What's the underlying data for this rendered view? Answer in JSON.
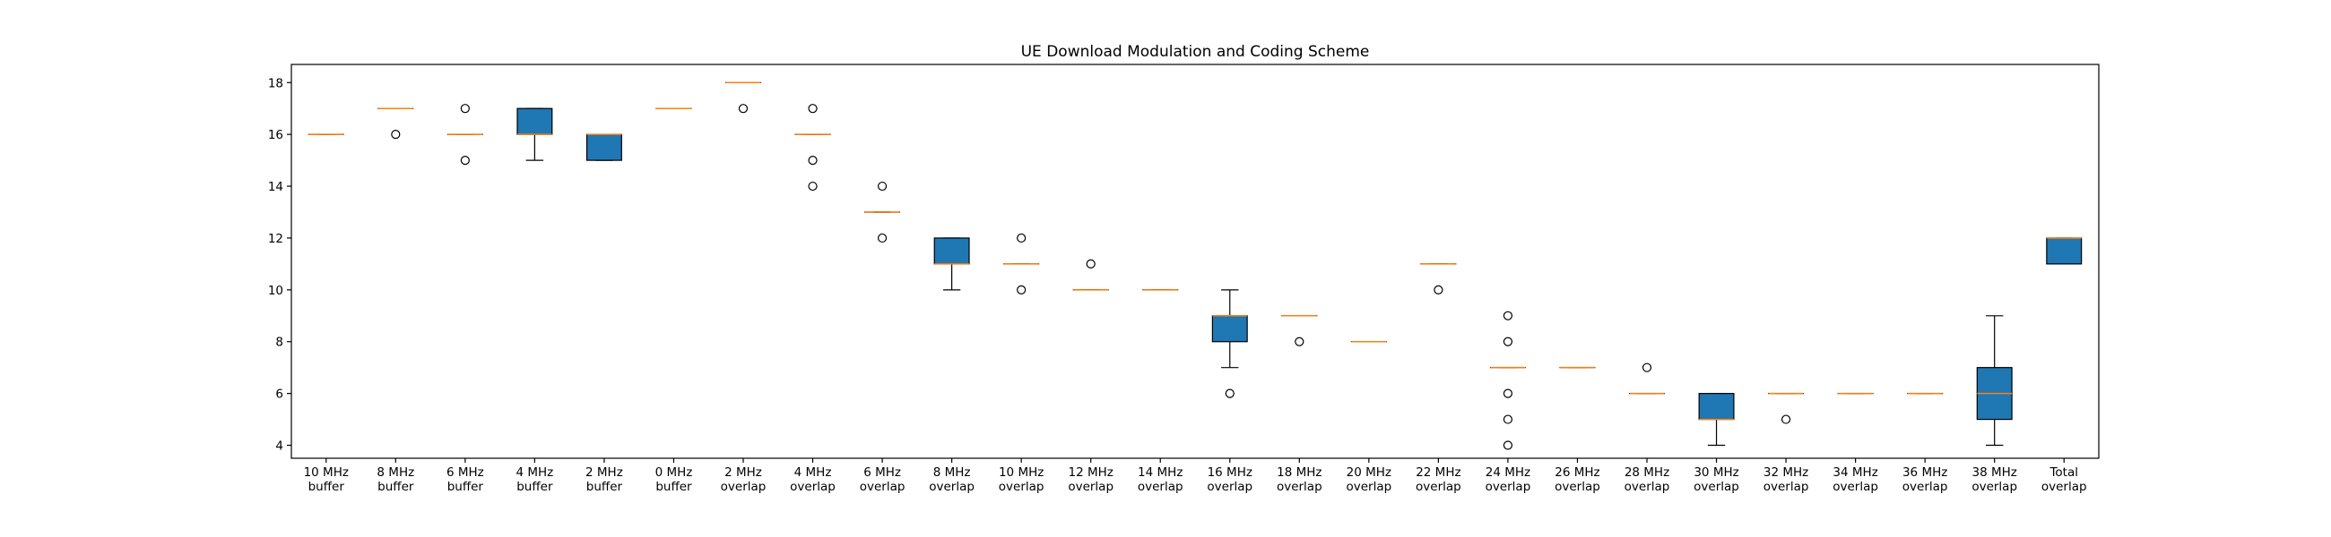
{
  "chart_data": {
    "type": "box",
    "title": "UE Download Modulation and Coding Scheme",
    "xlabel": "",
    "ylabel": "",
    "ylim": [
      3.5,
      18.7
    ],
    "yticks": [
      4,
      6,
      8,
      10,
      12,
      14,
      16,
      18
    ],
    "grid": false,
    "legend": "none",
    "box_color": "#1f77b4",
    "median_color": "#ff7f0e",
    "categories": [
      [
        "10 MHz",
        "buffer"
      ],
      [
        "8 MHz",
        "buffer"
      ],
      [
        "6 MHz",
        "buffer"
      ],
      [
        "4 MHz",
        "buffer"
      ],
      [
        "2 MHz",
        "buffer"
      ],
      [
        "0 MHz",
        "buffer"
      ],
      [
        "2 MHz",
        "overlap"
      ],
      [
        "4 MHz",
        "overlap"
      ],
      [
        "6 MHz",
        "overlap"
      ],
      [
        "8 MHz",
        "overlap"
      ],
      [
        "10 MHz",
        "overlap"
      ],
      [
        "12 MHz",
        "overlap"
      ],
      [
        "14 MHz",
        "overlap"
      ],
      [
        "16 MHz",
        "overlap"
      ],
      [
        "18 MHz",
        "overlap"
      ],
      [
        "20 MHz",
        "overlap"
      ],
      [
        "22 MHz",
        "overlap"
      ],
      [
        "24 MHz",
        "overlap"
      ],
      [
        "26 MHz",
        "overlap"
      ],
      [
        "28 MHz",
        "overlap"
      ],
      [
        "30 MHz",
        "overlap"
      ],
      [
        "32 MHz",
        "overlap"
      ],
      [
        "34 MHz",
        "overlap"
      ],
      [
        "36 MHz",
        "overlap"
      ],
      [
        "38 MHz",
        "overlap"
      ],
      [
        "Total",
        "overlap"
      ]
    ],
    "boxes": [
      {
        "whislo": 16,
        "q1": 16,
        "med": 16,
        "q3": 16,
        "whishi": 16,
        "fliers": []
      },
      {
        "whislo": 17,
        "q1": 17,
        "med": 17,
        "q3": 17,
        "whishi": 17,
        "fliers": [
          16
        ]
      },
      {
        "whislo": 16,
        "q1": 16,
        "med": 16,
        "q3": 16,
        "whishi": 16,
        "fliers": [
          17,
          15
        ]
      },
      {
        "whislo": 15,
        "q1": 16,
        "med": 16,
        "q3": 17,
        "whishi": 17,
        "fliers": []
      },
      {
        "whislo": 15,
        "q1": 15,
        "med": 16,
        "q3": 16,
        "whishi": 16,
        "fliers": []
      },
      {
        "whislo": 17,
        "q1": 17,
        "med": 17,
        "q3": 17,
        "whishi": 17,
        "fliers": []
      },
      {
        "whislo": 18,
        "q1": 18,
        "med": 18,
        "q3": 18,
        "whishi": 18,
        "fliers": [
          17
        ]
      },
      {
        "whislo": 16,
        "q1": 16,
        "med": 16,
        "q3": 16,
        "whishi": 16,
        "fliers": [
          17,
          15,
          14
        ]
      },
      {
        "whislo": 13,
        "q1": 13,
        "med": 13,
        "q3": 13,
        "whishi": 13,
        "fliers": [
          14,
          12
        ]
      },
      {
        "whislo": 10,
        "q1": 11,
        "med": 11,
        "q3": 12,
        "whishi": 12,
        "fliers": []
      },
      {
        "whislo": 11,
        "q1": 11,
        "med": 11,
        "q3": 11,
        "whishi": 11,
        "fliers": [
          12,
          10
        ]
      },
      {
        "whislo": 10,
        "q1": 10,
        "med": 10,
        "q3": 10,
        "whishi": 10,
        "fliers": [
          11
        ]
      },
      {
        "whislo": 10,
        "q1": 10,
        "med": 10,
        "q3": 10,
        "whishi": 10,
        "fliers": []
      },
      {
        "whislo": 7,
        "q1": 8,
        "med": 9,
        "q3": 9,
        "whishi": 10,
        "fliers": [
          6
        ]
      },
      {
        "whislo": 9,
        "q1": 9,
        "med": 9,
        "q3": 9,
        "whishi": 9,
        "fliers": [
          8
        ]
      },
      {
        "whislo": 8,
        "q1": 8,
        "med": 8,
        "q3": 8,
        "whishi": 8,
        "fliers": []
      },
      {
        "whislo": 11,
        "q1": 11,
        "med": 11,
        "q3": 11,
        "whishi": 11,
        "fliers": [
          10
        ]
      },
      {
        "whislo": 7,
        "q1": 7,
        "med": 7,
        "q3": 7,
        "whishi": 7,
        "fliers": [
          9,
          8,
          6,
          5,
          4
        ]
      },
      {
        "whislo": 7,
        "q1": 7,
        "med": 7,
        "q3": 7,
        "whishi": 7,
        "fliers": []
      },
      {
        "whislo": 6,
        "q1": 6,
        "med": 6,
        "q3": 6,
        "whishi": 6,
        "fliers": [
          7
        ]
      },
      {
        "whislo": 4,
        "q1": 5,
        "med": 5,
        "q3": 6,
        "whishi": 6,
        "fliers": []
      },
      {
        "whislo": 6,
        "q1": 6,
        "med": 6,
        "q3": 6,
        "whishi": 6,
        "fliers": [
          5
        ]
      },
      {
        "whislo": 6,
        "q1": 6,
        "med": 6,
        "q3": 6,
        "whishi": 6,
        "fliers": []
      },
      {
        "whislo": 6,
        "q1": 6,
        "med": 6,
        "q3": 6,
        "whishi": 6,
        "fliers": []
      },
      {
        "whislo": 4,
        "q1": 5,
        "med": 6,
        "q3": 7,
        "whishi": 9,
        "fliers": []
      },
      {
        "whislo": 11,
        "q1": 11,
        "med": 12,
        "q3": 12,
        "whishi": 12,
        "fliers": []
      }
    ]
  }
}
